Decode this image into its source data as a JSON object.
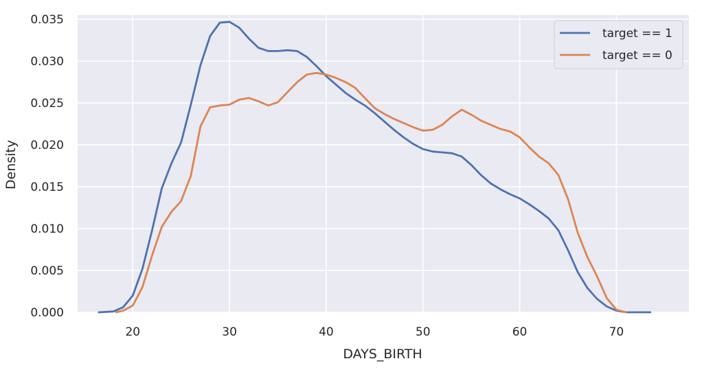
{
  "chart_data": {
    "type": "line",
    "xlabel": "DAYS_BIRTH",
    "ylabel": "Density",
    "xlim": [
      14.3,
      77.5
    ],
    "ylim": [
      0.0,
      0.0355
    ],
    "xticks": [
      20,
      30,
      40,
      50,
      60,
      70
    ],
    "xtick_labels": [
      "20",
      "30",
      "40",
      "50",
      "60",
      "70"
    ],
    "yticks": [
      0.0,
      0.005,
      0.01,
      0.015,
      0.02,
      0.025,
      0.03,
      0.035
    ],
    "ytick_labels": [
      "0.000",
      "0.005",
      "0.010",
      "0.015",
      "0.020",
      "0.025",
      "0.030",
      "0.035"
    ],
    "grid": true,
    "legend_position": "top-right",
    "series": [
      {
        "name": "target == 1",
        "color": "#4c72b0",
        "points": [
          [
            16.5,
            0.0
          ],
          [
            18.0,
            0.0001
          ],
          [
            19.0,
            0.0006
          ],
          [
            20.0,
            0.002
          ],
          [
            21.0,
            0.0052
          ],
          [
            22.0,
            0.0098
          ],
          [
            23.0,
            0.0148
          ],
          [
            24.0,
            0.0178
          ],
          [
            25.0,
            0.0203
          ],
          [
            26.0,
            0.0248
          ],
          [
            27.0,
            0.0295
          ],
          [
            28.0,
            0.033
          ],
          [
            29.0,
            0.0346
          ],
          [
            30.0,
            0.0347
          ],
          [
            31.0,
            0.034
          ],
          [
            32.0,
            0.0327
          ],
          [
            33.0,
            0.0316
          ],
          [
            34.0,
            0.0312
          ],
          [
            35.0,
            0.0312
          ],
          [
            36.0,
            0.0313
          ],
          [
            37.0,
            0.0312
          ],
          [
            38.0,
            0.0305
          ],
          [
            39.0,
            0.0294
          ],
          [
            40.0,
            0.0282
          ],
          [
            41.0,
            0.0272
          ],
          [
            42.0,
            0.0262
          ],
          [
            43.0,
            0.0254
          ],
          [
            44.0,
            0.0247
          ],
          [
            45.0,
            0.0238
          ],
          [
            46.0,
            0.0228
          ],
          [
            47.0,
            0.0218
          ],
          [
            48.0,
            0.0209
          ],
          [
            49.0,
            0.0201
          ],
          [
            50.0,
            0.0195
          ],
          [
            51.0,
            0.0192
          ],
          [
            52.0,
            0.0191
          ],
          [
            53.0,
            0.019
          ],
          [
            54.0,
            0.0186
          ],
          [
            55.0,
            0.0176
          ],
          [
            56.0,
            0.0164
          ],
          [
            57.0,
            0.0154
          ],
          [
            58.0,
            0.0147
          ],
          [
            59.0,
            0.0141
          ],
          [
            60.0,
            0.0136
          ],
          [
            61.0,
            0.0129
          ],
          [
            62.0,
            0.0121
          ],
          [
            63.0,
            0.0112
          ],
          [
            64.0,
            0.0098
          ],
          [
            65.0,
            0.0074
          ],
          [
            66.0,
            0.0048
          ],
          [
            67.0,
            0.0029
          ],
          [
            68.0,
            0.0016
          ],
          [
            69.0,
            0.0007
          ],
          [
            70.0,
            0.0002
          ],
          [
            71.0,
            0.0
          ],
          [
            73.5,
            0.0
          ]
        ]
      },
      {
        "name": "target == 0",
        "color": "#dd8452",
        "points": [
          [
            18.3,
            0.0
          ],
          [
            19.0,
            0.0002
          ],
          [
            20.0,
            0.0008
          ],
          [
            21.0,
            0.003
          ],
          [
            22.0,
            0.0068
          ],
          [
            23.0,
            0.0102
          ],
          [
            24.0,
            0.012
          ],
          [
            25.0,
            0.0133
          ],
          [
            26.0,
            0.0163
          ],
          [
            27.0,
            0.0222
          ],
          [
            28.0,
            0.0245
          ],
          [
            29.0,
            0.0247
          ],
          [
            30.0,
            0.0248
          ],
          [
            31.0,
            0.0254
          ],
          [
            32.0,
            0.0256
          ],
          [
            33.0,
            0.0252
          ],
          [
            34.0,
            0.0247
          ],
          [
            35.0,
            0.0251
          ],
          [
            36.0,
            0.0263
          ],
          [
            37.0,
            0.0275
          ],
          [
            38.0,
            0.0284
          ],
          [
            39.0,
            0.0286
          ],
          [
            40.0,
            0.0284
          ],
          [
            41.0,
            0.028
          ],
          [
            42.0,
            0.0275
          ],
          [
            43.0,
            0.0268
          ],
          [
            44.0,
            0.0256
          ],
          [
            45.0,
            0.0244
          ],
          [
            46.0,
            0.0237
          ],
          [
            47.0,
            0.0231
          ],
          [
            48.0,
            0.0226
          ],
          [
            49.0,
            0.0221
          ],
          [
            50.0,
            0.0217
          ],
          [
            51.0,
            0.0218
          ],
          [
            52.0,
            0.0224
          ],
          [
            53.0,
            0.0234
          ],
          [
            54.0,
            0.0242
          ],
          [
            55.0,
            0.0236
          ],
          [
            56.0,
            0.0229
          ],
          [
            57.0,
            0.0224
          ],
          [
            58.0,
            0.0219
          ],
          [
            59.0,
            0.0216
          ],
          [
            60.0,
            0.0209
          ],
          [
            61.0,
            0.0197
          ],
          [
            62.0,
            0.0186
          ],
          [
            63.0,
            0.0178
          ],
          [
            64.0,
            0.0164
          ],
          [
            65.0,
            0.0135
          ],
          [
            66.0,
            0.0095
          ],
          [
            67.0,
            0.0066
          ],
          [
            68.0,
            0.0043
          ],
          [
            69.0,
            0.0017
          ],
          [
            70.0,
            0.0003
          ],
          [
            71.0,
            0.0
          ]
        ]
      }
    ]
  }
}
